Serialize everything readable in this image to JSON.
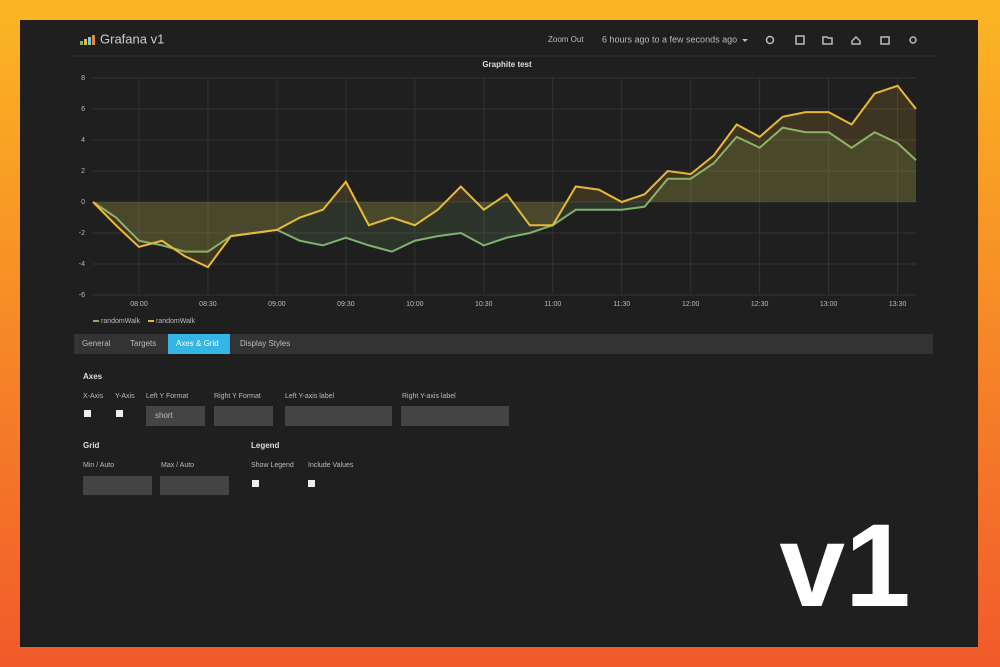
{
  "header": {
    "title": "Grafana v1",
    "zoom": "Zoom Out",
    "time_range": "6 hours ago to a few seconds ago"
  },
  "chart_data": {
    "type": "line",
    "title": "Graphite test",
    "x": [
      "07:40",
      "07:50",
      "08:00",
      "08:10",
      "08:20",
      "08:30",
      "08:40",
      "08:50",
      "09:00",
      "09:10",
      "09:20",
      "09:30",
      "09:40",
      "09:50",
      "10:00",
      "10:10",
      "10:20",
      "10:30",
      "10:40",
      "10:50",
      "11:00",
      "11:10",
      "11:20",
      "11:30",
      "11:40",
      "11:50",
      "12:00",
      "12:10",
      "12:20",
      "12:30",
      "12:40",
      "12:50",
      "13:00",
      "13:10",
      "13:20",
      "13:30",
      "13:38"
    ],
    "series": [
      {
        "name": "randomWalk",
        "color": "#7eb26d",
        "values": [
          0,
          -1,
          -2.5,
          -2.8,
          -3.2,
          -3.2,
          -2.2,
          -2,
          -1.8,
          -2.5,
          -2.8,
          -2.3,
          -2.8,
          -3.2,
          -2.5,
          -2.2,
          -2,
          -2.8,
          -2.3,
          -2,
          -1.5,
          -0.5,
          -0.5,
          -0.5,
          -0.3,
          1.5,
          1.5,
          2.5,
          4.2,
          3.5,
          4.8,
          4.5,
          4.5,
          3.5,
          4.5,
          3.8,
          2.7
        ]
      },
      {
        "name": "randomWalk",
        "color": "#eab839",
        "values": [
          0,
          -1.5,
          -2.9,
          -2.5,
          -3.5,
          -4.2,
          -2.2,
          -2,
          -1.8,
          -1,
          -0.5,
          1.3,
          -1.5,
          -1,
          -1.5,
          -0.5,
          1,
          -0.5,
          0.5,
          -1.5,
          -1.5,
          1,
          0.8,
          0,
          0.5,
          2,
          1.8,
          3,
          5,
          4.2,
          5.5,
          5.8,
          5.8,
          5,
          7,
          7.5,
          6
        ]
      }
    ],
    "xlim": [
      "07:40",
      "13:38"
    ],
    "xticks": [
      "08:00",
      "08:30",
      "09:00",
      "09:30",
      "10:00",
      "10:30",
      "11:00",
      "11:30",
      "12:00",
      "12:30",
      "13:00",
      "13:30"
    ],
    "ylim": [
      -6,
      8
    ],
    "yticks": [
      8,
      6,
      4,
      2,
      0,
      -2,
      -4,
      -6
    ],
    "grid": true,
    "fill": true
  },
  "tabs": [
    "General",
    "Targets",
    "Axes & Grid",
    "Display Styles"
  ],
  "form": {
    "axes_heading": "Axes",
    "x_axis": "X-Axis",
    "y_axis": "Y-Axis",
    "left_y_format": "Left Y Format",
    "left_y_value": "short",
    "right_y_format": "Right Y Format",
    "left_label": "Left Y-axis label",
    "right_label": "Right Y-axis label",
    "grid_heading": "Grid",
    "min": "Min / Auto",
    "max": "Max / Auto",
    "legend_heading": "Legend",
    "show_legend": "Show Legend",
    "include_values": "Include Values"
  },
  "badge": "v1"
}
